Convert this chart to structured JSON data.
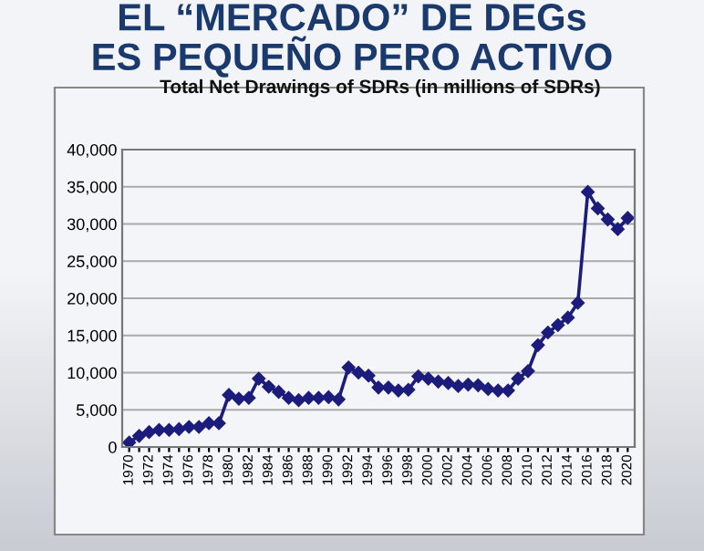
{
  "chart_data": {
    "type": "line",
    "title": "EL “MERCADO” DE DEGs\nES PEQUEÑO PERO ACTIVO",
    "subtitle": "Total Net Drawings of SDRs (in millions of SDRs)",
    "categories": [
      "1970",
      null,
      "1972",
      null,
      "1974",
      null,
      "1976",
      null,
      "1978",
      null,
      "1980",
      null,
      "1982",
      null,
      "1984",
      null,
      "1986",
      null,
      "1988",
      null,
      "1990",
      null,
      "1992",
      null,
      "1994",
      null,
      "1996",
      null,
      "1998",
      null,
      "2000",
      null,
      "2002",
      null,
      "2004",
      null,
      "2006",
      null,
      "2008",
      null,
      "2010",
      null,
      "2012",
      null,
      "2014",
      null,
      "2016",
      null,
      "2018",
      null,
      "2020"
    ],
    "series": [
      {
        "color": "#1c1c7c",
        "values": [
          600,
          1500,
          2000,
          2300,
          2300,
          2400,
          2700,
          2700,
          3200,
          3200,
          7000,
          6500,
          6600,
          9200,
          8100,
          7400,
          6600,
          6300,
          6600,
          6600,
          6700,
          6400,
          10700,
          10000,
          9600,
          8000,
          8000,
          7600,
          7700,
          9500,
          9200,
          8800,
          8600,
          8200,
          8400,
          8300,
          7800,
          7600,
          7600,
          9200,
          10200,
          13700,
          15400,
          16400,
          17400,
          19400,
          34300,
          32100,
          30600,
          29300,
          30800
        ]
      }
    ],
    "ylim": [
      0,
      40000
    ],
    "yticks": [
      {
        "value": 0,
        "label": "0"
      },
      {
        "value": 5000,
        "label": "5,000"
      },
      {
        "value": 10000,
        "label": "10,000"
      },
      {
        "value": 15000,
        "label": "15,000"
      },
      {
        "value": 20000,
        "label": "20,000"
      },
      {
        "value": 25000,
        "label": "25,000"
      },
      {
        "value": 30000,
        "label": "30,000"
      },
      {
        "value": 35000,
        "label": "35,000"
      },
      {
        "value": 40000,
        "label": "40,000"
      }
    ],
    "grid": "y",
    "marker": "diamond",
    "line_style": "solid"
  }
}
